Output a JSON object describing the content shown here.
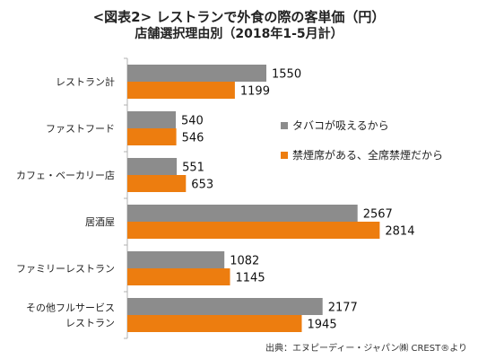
{
  "title": {
    "line1": "<図表2> レストランで外食の際の客単価（円）",
    "line2": "店舗選択理由別（2018年1-5月計）"
  },
  "source": "出典：エヌピーディー・ジャパン㈱ CREST®より",
  "colors": {
    "smoking": "#8c8c8c",
    "non_smoking": "#ed7d0f"
  },
  "chart_data": {
    "type": "bar",
    "orientation": "horizontal",
    "title": "<図表2> レストランで外食の際の客単価（円） 店舗選択理由別（2018年1-5月計）",
    "categories": [
      [
        "レストラン計"
      ],
      [
        "ファストフード"
      ],
      [
        "カフェ・ベーカリー店"
      ],
      [
        "居酒屋"
      ],
      [
        "ファミリーレストラン"
      ],
      [
        "その他フルサービス",
        "レストラン"
      ]
    ],
    "series": [
      {
        "name": "タバコが吸えるから",
        "values": [
          1550,
          540,
          551,
          2567,
          1082,
          2177
        ]
      },
      {
        "name": "禁煙席がある、全席禁煙だから",
        "values": [
          1199,
          546,
          653,
          2814,
          1145,
          1945
        ]
      }
    ],
    "xlim": [
      0,
      3000
    ],
    "grid": false,
    "legend_position": "center-right",
    "data_labels": true
  }
}
